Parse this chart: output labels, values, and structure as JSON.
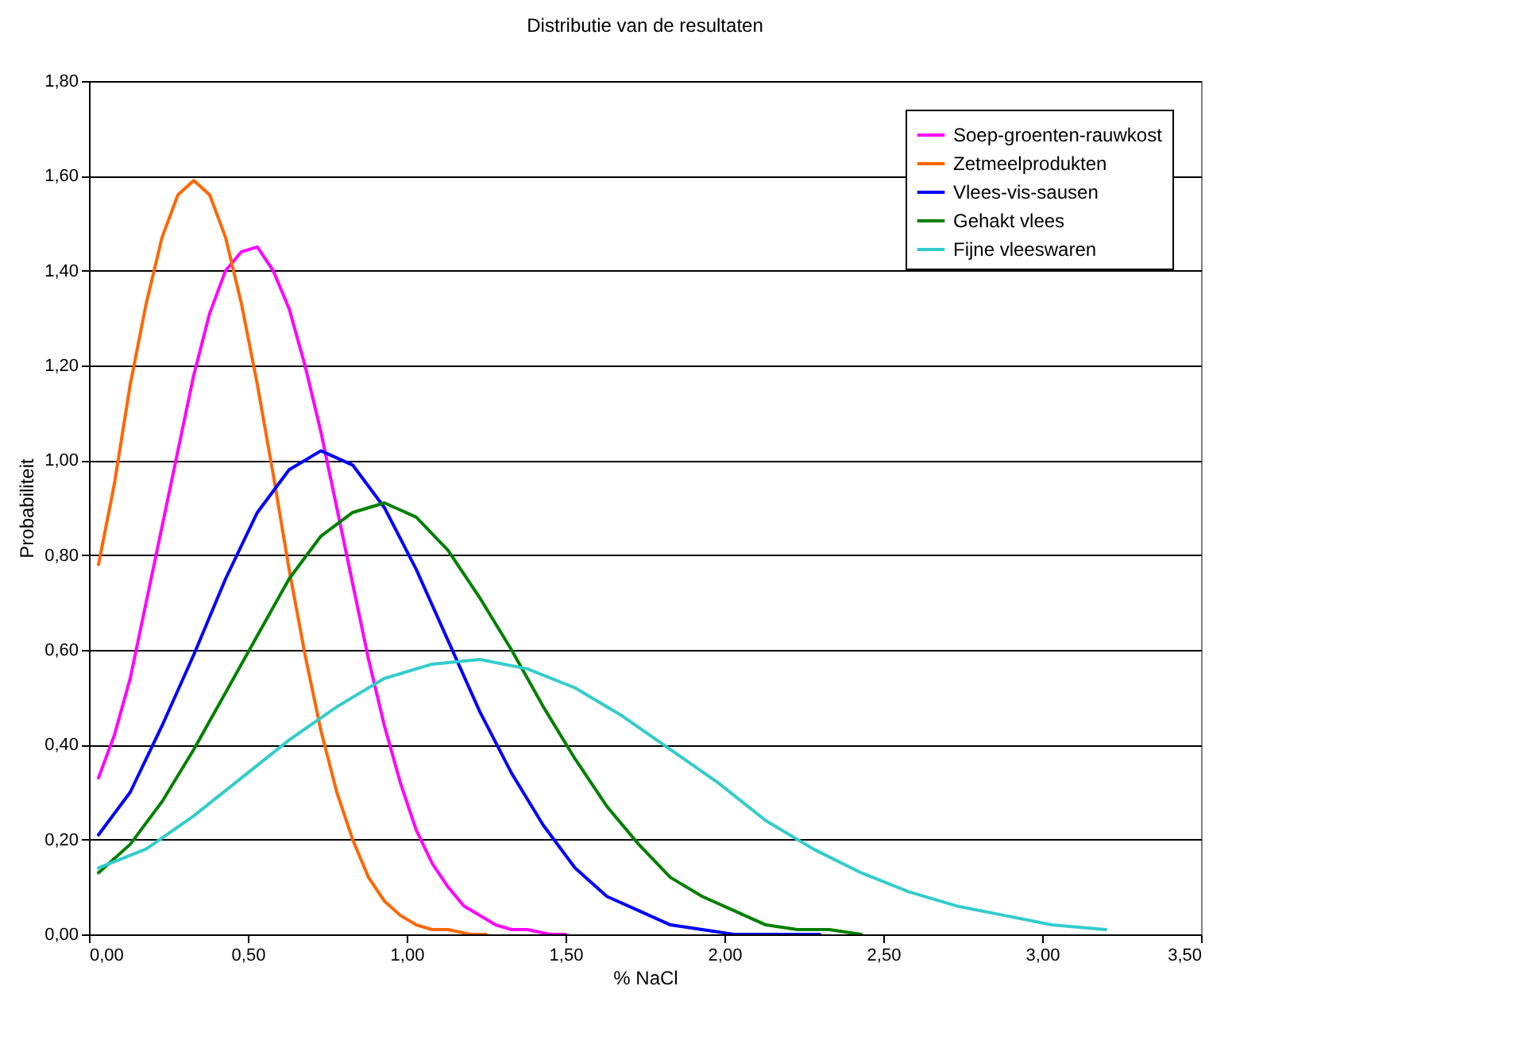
{
  "chart_data": {
    "type": "line",
    "title": "Distributie van de resultaten",
    "xlabel": "% NaCl",
    "ylabel": "Probabiliteit",
    "xlim": [
      0,
      3.5
    ],
    "ylim": [
      0,
      1.8
    ],
    "xticks": [
      {
        "value": 0,
        "label": "0,00"
      },
      {
        "value": 0.5,
        "label": "0,50"
      },
      {
        "value": 1,
        "label": "1,00"
      },
      {
        "value": 1.5,
        "label": "1,50"
      },
      {
        "value": 2,
        "label": "2,00"
      },
      {
        "value": 2.5,
        "label": "2,50"
      },
      {
        "value": 3,
        "label": "3,00"
      },
      {
        "value": 3.5,
        "label": "3,50"
      }
    ],
    "yticks": [
      {
        "value": 0,
        "label": "0,00"
      },
      {
        "value": 0.2,
        "label": "0,20"
      },
      {
        "value": 0.4,
        "label": "0,40"
      },
      {
        "value": 0.6,
        "label": "0,60"
      },
      {
        "value": 0.8,
        "label": "0,80"
      },
      {
        "value": 1,
        "label": "1,00"
      },
      {
        "value": 1.2,
        "label": "1,20"
      },
      {
        "value": 1.4,
        "label": "1,40"
      },
      {
        "value": 1.6,
        "label": "1,60"
      },
      {
        "value": 1.8,
        "label": "1,80"
      }
    ],
    "grid": "y",
    "legend": "top right",
    "marker": "none",
    "line_style": "solid",
    "series": [
      {
        "name": "Soep-groenten-rauwkost",
        "color": "#ff00ff",
        "x": [
          0.03,
          0.08,
          0.13,
          0.18,
          0.23,
          0.28,
          0.33,
          0.38,
          0.43,
          0.48,
          0.53,
          0.58,
          0.63,
          0.68,
          0.73,
          0.78,
          0.83,
          0.88,
          0.93,
          0.98,
          1.03,
          1.08,
          1.13,
          1.18,
          1.23,
          1.28,
          1.33,
          1.38,
          1.45,
          1.5
        ],
        "values": [
          0.33,
          0.42,
          0.54,
          0.7,
          0.86,
          1.02,
          1.18,
          1.31,
          1.4,
          1.44,
          1.45,
          1.4,
          1.32,
          1.2,
          1.06,
          0.9,
          0.74,
          0.58,
          0.44,
          0.32,
          0.22,
          0.15,
          0.1,
          0.06,
          0.04,
          0.02,
          0.01,
          0.01,
          0.0,
          0.0
        ]
      },
      {
        "name": "Zetmeelprodukten",
        "color": "#ff6600",
        "x": [
          0.03,
          0.08,
          0.13,
          0.18,
          0.23,
          0.28,
          0.33,
          0.38,
          0.43,
          0.48,
          0.53,
          0.58,
          0.63,
          0.68,
          0.73,
          0.78,
          0.83,
          0.88,
          0.93,
          0.98,
          1.03,
          1.08,
          1.13,
          1.2,
          1.25
        ],
        "values": [
          0.78,
          0.95,
          1.16,
          1.33,
          1.47,
          1.56,
          1.59,
          1.56,
          1.47,
          1.33,
          1.16,
          0.97,
          0.77,
          0.59,
          0.43,
          0.3,
          0.2,
          0.12,
          0.07,
          0.04,
          0.02,
          0.01,
          0.01,
          0.0,
          0.0
        ]
      },
      {
        "name": "Vlees-vis-sausen",
        "color": "#0000ff",
        "x": [
          0.03,
          0.13,
          0.23,
          0.33,
          0.43,
          0.53,
          0.63,
          0.73,
          0.83,
          0.93,
          1.03,
          1.13,
          1.23,
          1.33,
          1.43,
          1.53,
          1.63,
          1.73,
          1.83,
          1.93,
          2.03,
          2.13,
          2.3
        ],
        "values": [
          0.21,
          0.3,
          0.44,
          0.59,
          0.75,
          0.89,
          0.98,
          1.02,
          0.99,
          0.9,
          0.77,
          0.62,
          0.47,
          0.34,
          0.23,
          0.14,
          0.08,
          0.05,
          0.02,
          0.01,
          0.0,
          0.0,
          0.0
        ]
      },
      {
        "name": "Gehakt vlees",
        "color": "#008000",
        "x": [
          0.03,
          0.13,
          0.23,
          0.33,
          0.43,
          0.53,
          0.63,
          0.73,
          0.83,
          0.93,
          1.03,
          1.13,
          1.23,
          1.33,
          1.43,
          1.53,
          1.63,
          1.73,
          1.83,
          1.93,
          2.03,
          2.13,
          2.23,
          2.33,
          2.43
        ],
        "values": [
          0.13,
          0.19,
          0.28,
          0.39,
          0.51,
          0.63,
          0.75,
          0.84,
          0.89,
          0.91,
          0.88,
          0.81,
          0.71,
          0.6,
          0.48,
          0.37,
          0.27,
          0.19,
          0.12,
          0.08,
          0.05,
          0.02,
          0.01,
          0.01,
          0.0
        ]
      },
      {
        "name": "Fijne vleeswaren",
        "color": "#33cccc",
        "x": [
          0.03,
          0.18,
          0.33,
          0.48,
          0.63,
          0.78,
          0.93,
          1.08,
          1.23,
          1.38,
          1.53,
          1.68,
          1.83,
          1.98,
          2.13,
          2.28,
          2.43,
          2.58,
          2.73,
          2.88,
          3.03,
          3.2
        ],
        "values": [
          0.14,
          0.18,
          0.25,
          0.33,
          0.41,
          0.48,
          0.54,
          0.57,
          0.58,
          0.56,
          0.52,
          0.46,
          0.39,
          0.32,
          0.24,
          0.18,
          0.13,
          0.09,
          0.06,
          0.04,
          0.02,
          0.01
        ]
      }
    ]
  }
}
